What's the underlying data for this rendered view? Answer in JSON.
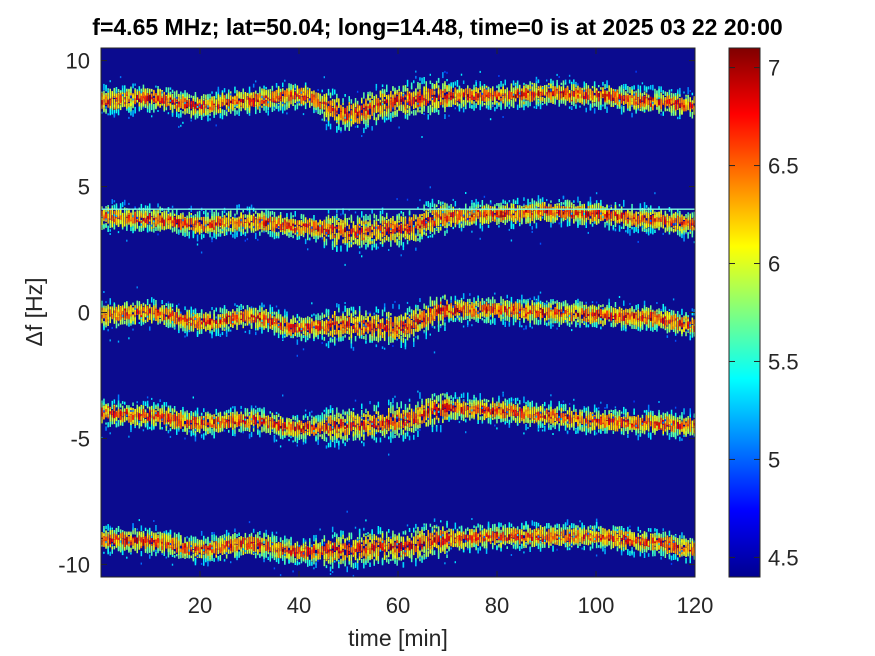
{
  "chart_data": {
    "type": "heatmap",
    "title": "f=4.65 MHz;  lat=50.04; long=14.48, time=0 is at 2025 03 22 20:00",
    "xlabel": "time [min]",
    "ylabel": "Δf [Hz]",
    "xlim": [
      0,
      120
    ],
    "ylim": [
      -10.5,
      10.5
    ],
    "x_ticks": [
      20,
      40,
      60,
      80,
      100,
      120
    ],
    "y_ticks": [
      10,
      5,
      0,
      -5,
      -10
    ],
    "y_tick_labels": [
      "10",
      "5",
      "0",
      "-5",
      "-10"
    ],
    "colorbar": {
      "range": [
        4.4,
        7.1
      ],
      "ticks": [
        4.5,
        5,
        5.5,
        6,
        6.5,
        7
      ],
      "tick_labels": [
        "4.5",
        "5",
        "5.5",
        "6",
        "6.5",
        "7"
      ],
      "colormap": "jet"
    },
    "background_color": "#0b0b8f",
    "series": [
      {
        "time": [
          0,
          10,
          20,
          30,
          40,
          50,
          60,
          70,
          80,
          90,
          100,
          110,
          120
        ],
        "delta_f": [
          8.4,
          8.5,
          8.2,
          8.4,
          8.6,
          7.9,
          8.4,
          8.6,
          8.6,
          8.7,
          8.6,
          8.4,
          8.2
        ]
      },
      {
        "time": [
          0,
          10,
          20,
          30,
          40,
          50,
          60,
          70,
          80,
          90,
          100,
          110,
          120
        ],
        "delta_f": [
          3.8,
          3.7,
          3.5,
          3.6,
          3.4,
          3.2,
          3.3,
          3.8,
          3.9,
          4.0,
          3.9,
          3.7,
          3.5
        ]
      },
      {
        "time": [
          0,
          10,
          20,
          30,
          40,
          50,
          60,
          70,
          80,
          90,
          100,
          110,
          120
        ],
        "delta_f": [
          -0.1,
          0.0,
          -0.4,
          -0.2,
          -0.6,
          -0.5,
          -0.6,
          0.1,
          0.1,
          0.0,
          -0.1,
          -0.2,
          -0.5
        ]
      },
      {
        "time": [
          0,
          10,
          20,
          30,
          40,
          50,
          60,
          70,
          80,
          90,
          100,
          110,
          120
        ],
        "delta_f": [
          -4.0,
          -4.1,
          -4.4,
          -4.3,
          -4.6,
          -4.5,
          -4.3,
          -3.8,
          -3.9,
          -4.1,
          -4.3,
          -4.4,
          -4.5
        ]
      },
      {
        "time": [
          0,
          10,
          20,
          30,
          40,
          50,
          60,
          70,
          80,
          90,
          100,
          110,
          120
        ],
        "delta_f": [
          -9.0,
          -9.1,
          -9.4,
          -9.2,
          -9.5,
          -9.4,
          -9.3,
          -9.0,
          -8.9,
          -8.9,
          -8.9,
          -9.1,
          -9.4
        ]
      }
    ],
    "horizontal_line": 4.1
  }
}
